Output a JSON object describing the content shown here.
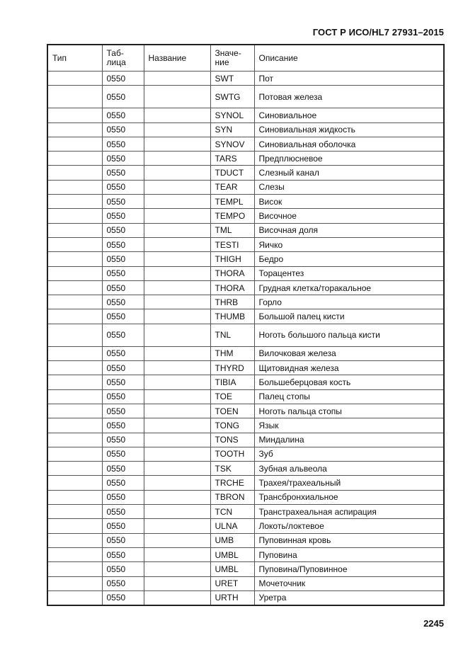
{
  "document": {
    "header": "ГОСТ Р ИСО/HL7 27931–2015",
    "page_number": "2245"
  },
  "table": {
    "columns": [
      "Тип",
      "Таб-\nлица",
      "Название",
      "Значе-\nние",
      "Описание"
    ],
    "rows": [
      {
        "type": "",
        "table": "0550",
        "name": "",
        "value": "SWT",
        "description": "Пот"
      },
      {
        "type": "",
        "table": "0550",
        "name": "",
        "value": "SWTG",
        "description": "Потовая железа",
        "tall": true
      },
      {
        "type": "",
        "table": "0550",
        "name": "",
        "value": "SYNOL",
        "description": "Синовиальное"
      },
      {
        "type": "",
        "table": "0550",
        "name": "",
        "value": "SYN",
        "description": "Синовиальная жидкость"
      },
      {
        "type": "",
        "table": "0550",
        "name": "",
        "value": "SYNOV",
        "description": "Синовиальная оболочка"
      },
      {
        "type": "",
        "table": "0550",
        "name": "",
        "value": "TARS",
        "description": "Предплюсневое"
      },
      {
        "type": "",
        "table": "0550",
        "name": "",
        "value": "TDUCT",
        "description": "Слезный канал"
      },
      {
        "type": "",
        "table": "0550",
        "name": "",
        "value": "TEAR",
        "description": "Слезы"
      },
      {
        "type": "",
        "table": "0550",
        "name": "",
        "value": "TEMPL",
        "description": "Висок"
      },
      {
        "type": "",
        "table": "0550",
        "name": "",
        "value": "TEMPO",
        "description": "Височное"
      },
      {
        "type": "",
        "table": "0550",
        "name": "",
        "value": "TML",
        "description": "Височная доля"
      },
      {
        "type": "",
        "table": "0550",
        "name": "",
        "value": "TESTI",
        "description": "Яичко"
      },
      {
        "type": "",
        "table": "0550",
        "name": "",
        "value": "THIGH",
        "description": "Бедро"
      },
      {
        "type": "",
        "table": "0550",
        "name": "",
        "value": "THORA",
        "description": "Торацентез"
      },
      {
        "type": "",
        "table": "0550",
        "name": "",
        "value": "THORA",
        "description": "Грудная клетка/торакальное"
      },
      {
        "type": "",
        "table": "0550",
        "name": "",
        "value": "THRB",
        "description": "Горло"
      },
      {
        "type": "",
        "table": "0550",
        "name": "",
        "value": "THUMB",
        "description": "Большой палец кисти"
      },
      {
        "type": "",
        "table": "0550",
        "name": "",
        "value": "TNL",
        "description": "Ноготь большого пальца кисти",
        "tall": true
      },
      {
        "type": "",
        "table": "0550",
        "name": "",
        "value": "THM",
        "description": "Вилочковая железа"
      },
      {
        "type": "",
        "table": "0550",
        "name": "",
        "value": "THYRD",
        "description": "Щитовидная железа"
      },
      {
        "type": "",
        "table": "0550",
        "name": "",
        "value": "TIBIA",
        "description": "Большеберцовая кость"
      },
      {
        "type": "",
        "table": "0550",
        "name": "",
        "value": "TOE",
        "description": "Палец стопы"
      },
      {
        "type": "",
        "table": "0550",
        "name": "",
        "value": "TOEN",
        "description": "Ноготь пальца стопы"
      },
      {
        "type": "",
        "table": "0550",
        "name": "",
        "value": "TONG",
        "description": "Язык"
      },
      {
        "type": "",
        "table": "0550",
        "name": "",
        "value": "TONS",
        "description": "Миндалина"
      },
      {
        "type": "",
        "table": "0550",
        "name": "",
        "value": "TOOTH",
        "description": "Зуб"
      },
      {
        "type": "",
        "table": "0550",
        "name": "",
        "value": "TSK",
        "description": "Зубная альвеола"
      },
      {
        "type": "",
        "table": "0550",
        "name": "",
        "value": "TRCHE",
        "description": "Трахея/трахеальный"
      },
      {
        "type": "",
        "table": "0550",
        "name": "",
        "value": "TBRON",
        "description": "Трансбронхиальное"
      },
      {
        "type": "",
        "table": "0550",
        "name": "",
        "value": "TCN",
        "description": "Транстрахеальная аспирация"
      },
      {
        "type": "",
        "table": "0550",
        "name": "",
        "value": "ULNA",
        "description": "Локоть/локтевое"
      },
      {
        "type": "",
        "table": "0550",
        "name": "",
        "value": "UMB",
        "description": "Пуповинная кровь"
      },
      {
        "type": "",
        "table": "0550",
        "name": "",
        "value": "UMBL",
        "description": "Пуповина"
      },
      {
        "type": "",
        "table": "0550",
        "name": "",
        "value": "UMBL",
        "description": "Пуповина/Пуповинное"
      },
      {
        "type": "",
        "table": "0550",
        "name": "",
        "value": "URET",
        "description": "Мочеточник"
      },
      {
        "type": "",
        "table": "0550",
        "name": "",
        "value": "URTH",
        "description": "Уретра"
      }
    ]
  }
}
